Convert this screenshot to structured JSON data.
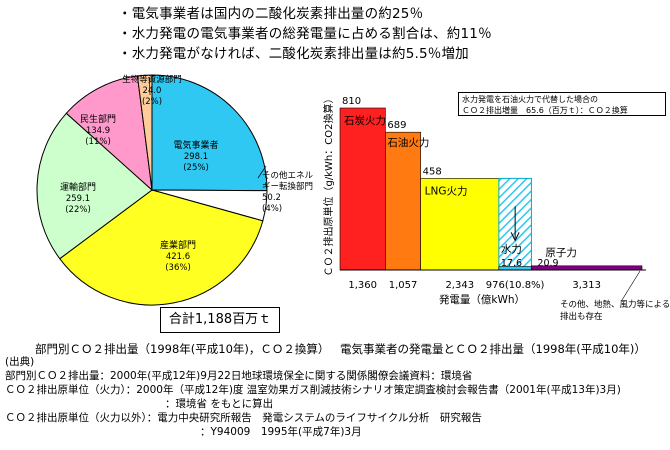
{
  "bullets": [
    "電気事業者は国内の二酸化炭素排出量の約25％",
    "水力発電の電気事業者の総発電量に占める割合は、約11％",
    "水力発電がなければ、二酸化炭素排出量は約5.5％増加"
  ],
  "chart_data": [
    {
      "type": "pie",
      "slices": [
        {
          "label_lines": [
            "電気事業者",
            "298.1",
            "(25%)"
          ],
          "value": 298.1,
          "percent": 25,
          "color": "#2ec8f2"
        },
        {
          "label_lines": [
            "その他エネル",
            "ギー転換部門",
            "50.2",
            "(4%)"
          ],
          "value": 50.2,
          "percent": 4,
          "color": "#ffffff"
        },
        {
          "label_lines": [
            "産業部門",
            "421.6",
            "(36%)"
          ],
          "value": 421.6,
          "percent": 36,
          "color": "#ffff22"
        },
        {
          "label_lines": [
            "運輸部門",
            "259.1",
            "(22%)"
          ],
          "value": 259.1,
          "percent": 22,
          "color": "#ccffcc"
        },
        {
          "label_lines": [
            "民生部門",
            "134.9",
            "(11%)"
          ],
          "value": 134.9,
          "percent": 11,
          "color": "#ff99cc"
        },
        {
          "label_lines": [
            "生物等資源部門",
            "24.0",
            "(2%)"
          ],
          "value": 24.0,
          "percent": 2,
          "color": "#ffcc99"
        }
      ],
      "total_label": "合計1,188百万ｔ",
      "caption": "部門別ＣＯ２排出量（1998年(平成10年)，ＣＯ２換算）"
    },
    {
      "type": "bar",
      "variant": "variable-width",
      "ylabel": "ＣＯ２排出原単位（g/kWh：CO2換算）",
      "xlabel": "発電量（億kWh）",
      "bars": [
        {
          "name": "石炭火力",
          "emission": 810,
          "generation": "1,360",
          "gen_value": 1360,
          "color": "#ff2020"
        },
        {
          "name": "石油火力",
          "emission": 689,
          "generation": "1,057",
          "gen_value": 1057,
          "color": "#ff7a10"
        },
        {
          "name": "LNG火力",
          "emission": 458,
          "generation": "2,343",
          "gen_value": 2343,
          "color": "#ffff00"
        },
        {
          "name": "水力",
          "emission": 17.6,
          "generation": "976(10.8%)",
          "gen_value": 976,
          "color": "#2ec8f2",
          "hatched_target": 458
        },
        {
          "name": "原子力",
          "emission": 20.9,
          "generation": "3,313",
          "gen_value": 3313,
          "color": "#800080"
        }
      ],
      "emission_labels": {
        "hydro": "17.6",
        "nuclear": "20.9"
      },
      "note_lines": [
        "水力発電を石油火力で代替した場合の",
        "ＣＯ２排出増量　65.6（百万ｔ）：ＣＯ２換算"
      ],
      "other_note_lines": [
        "その他、地熱、風力等による",
        "排出も存在"
      ],
      "caption": "電気事業者の発電量とＣＯ２排出量（1998年(平成10年)）"
    }
  ],
  "sources": [
    "(出典)",
    "部門別ＣＯ２排出量：2000年(平成12年)9月22日地球環境保全に関する関係閣僚会議資料：環境省",
    "ＣＯ２排出原単位（火力）：2000年（平成12年)度 温室効果ガス削減技術シナリオ策定調査検討会報告書（2001年(平成13年)3月)",
    "：環境省 をもとに算出",
    "ＣＯ２排出原単位（火力以外）：電力中央研究所報告　発電システムのライフサイクル分析　研究報告",
    "：Y94009　1995年(平成7年)3月"
  ]
}
